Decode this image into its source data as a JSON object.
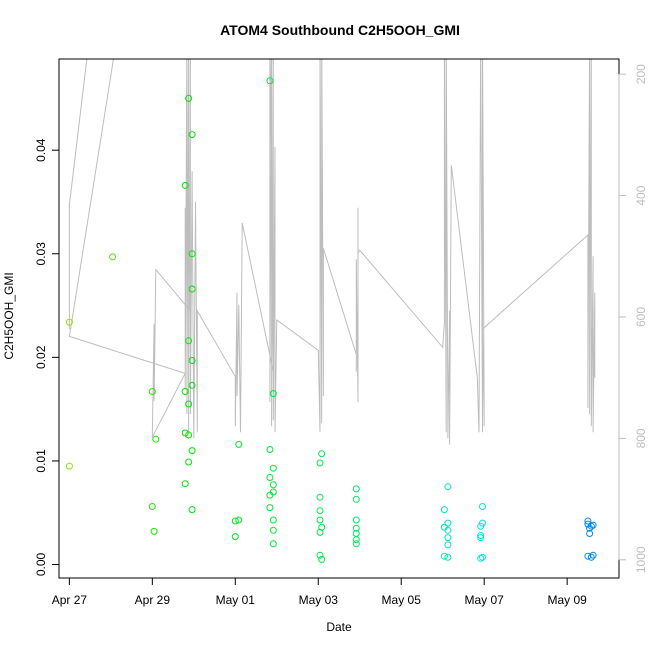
{
  "chart_data": {
    "type": "scatter",
    "title": "ATOM4 Southbound C2H5OOH_GMI",
    "xlabel": "Date",
    "ylabel": "C2H5OOH_GMI",
    "xlim": [
      "2018-04-26T18:00",
      "2018-05-10T06:00"
    ],
    "ylim": [
      -0.0013,
      0.0488
    ],
    "x_tick_labels": [
      "Apr 27",
      "Apr 29",
      "May 01",
      "May 03",
      "May 05",
      "May 07",
      "May 09"
    ],
    "x_ticks": [
      "2018-04-27",
      "2018-04-29",
      "2018-05-01",
      "2018-05-03",
      "2018-05-05",
      "2018-05-07",
      "2018-05-09"
    ],
    "y_ticks": [
      0.0,
      0.01,
      0.02,
      0.03,
      0.04
    ],
    "y_tick_labels": [
      "0.00",
      "0.01",
      "0.02",
      "0.03",
      "0.04"
    ],
    "right_axis": {
      "ticks": [
        200,
        400,
        600,
        800,
        1000
      ],
      "tick_labels": [
        "200",
        "400",
        "600",
        "800",
        "1000"
      ],
      "reversed": true,
      "lim": [
        175,
        1030
      ]
    },
    "series": [
      {
        "kind": "points",
        "color_scale": "green-to-blue by date",
        "points": [
          {
            "x": "2018-04-27T00:00",
            "y": 0.0234
          },
          {
            "x": "2018-04-27T00:00",
            "y": 0.0095
          },
          {
            "x": "2018-04-28T01:00",
            "y": 0.0297
          },
          {
            "x": "2018-04-29T00:00",
            "y": 0.0167
          },
          {
            "x": "2018-04-29T02:00",
            "y": 0.0121
          },
          {
            "x": "2018-04-29T00:00",
            "y": 0.0056
          },
          {
            "x": "2018-04-29T01:00",
            "y": 0.0032
          },
          {
            "x": "2018-04-29T19:00",
            "y": 0.0366
          },
          {
            "x": "2018-04-29T19:00",
            "y": 0.0167
          },
          {
            "x": "2018-04-29T19:00",
            "y": 0.0127
          },
          {
            "x": "2018-04-29T19:00",
            "y": 0.0078
          },
          {
            "x": "2018-04-29T21:00",
            "y": 0.045
          },
          {
            "x": "2018-04-29T21:00",
            "y": 0.0216
          },
          {
            "x": "2018-04-29T21:00",
            "y": 0.0155
          },
          {
            "x": "2018-04-29T21:00",
            "y": 0.0125
          },
          {
            "x": "2018-04-29T21:00",
            "y": 0.0099
          },
          {
            "x": "2018-04-29T23:00",
            "y": 0.0415
          },
          {
            "x": "2018-04-29T23:00",
            "y": 0.03
          },
          {
            "x": "2018-04-29T23:00",
            "y": 0.0266
          },
          {
            "x": "2018-04-29T23:00",
            "y": 0.0197
          },
          {
            "x": "2018-04-29T23:00",
            "y": 0.0173
          },
          {
            "x": "2018-04-29T23:00",
            "y": 0.011
          },
          {
            "x": "2018-04-29T23:00",
            "y": 0.0053
          },
          {
            "x": "2018-05-01T00:00",
            "y": 0.0042
          },
          {
            "x": "2018-05-01T02:00",
            "y": 0.0043
          },
          {
            "x": "2018-05-01T00:00",
            "y": 0.0027
          },
          {
            "x": "2018-05-01T02:00",
            "y": 0.0116
          },
          {
            "x": "2018-05-01T20:00",
            "y": 0.0467
          },
          {
            "x": "2018-05-01T20:00",
            "y": 0.0111
          },
          {
            "x": "2018-05-01T20:00",
            "y": 0.0084
          },
          {
            "x": "2018-05-01T20:00",
            "y": 0.0067
          },
          {
            "x": "2018-05-01T20:00",
            "y": 0.0055
          },
          {
            "x": "2018-05-01T22:00",
            "y": 0.0165
          },
          {
            "x": "2018-05-01T22:00",
            "y": 0.0093
          },
          {
            "x": "2018-05-01T22:00",
            "y": 0.0077
          },
          {
            "x": "2018-05-01T22:00",
            "y": 0.007
          },
          {
            "x": "2018-05-01T22:00",
            "y": 0.0043
          },
          {
            "x": "2018-05-01T22:00",
            "y": 0.0033
          },
          {
            "x": "2018-05-01T22:00",
            "y": 0.002
          },
          {
            "x": "2018-05-03T02:00",
            "y": 0.0107
          },
          {
            "x": "2018-05-03T01:00",
            "y": 0.0098
          },
          {
            "x": "2018-05-03T01:00",
            "y": 0.0065
          },
          {
            "x": "2018-05-03T01:00",
            "y": 0.0052
          },
          {
            "x": "2018-05-03T01:00",
            "y": 0.0043
          },
          {
            "x": "2018-05-03T02:00",
            "y": 0.0036
          },
          {
            "x": "2018-05-03T01:00",
            "y": 0.0031
          },
          {
            "x": "2018-05-03T01:00",
            "y": 0.0009
          },
          {
            "x": "2018-05-03T02:00",
            "y": 0.0005
          },
          {
            "x": "2018-05-03T22:00",
            "y": 0.0073
          },
          {
            "x": "2018-05-03T22:00",
            "y": 0.0063
          },
          {
            "x": "2018-05-03T22:00",
            "y": 0.0043
          },
          {
            "x": "2018-05-03T22:00",
            "y": 0.0035
          },
          {
            "x": "2018-05-03T22:00",
            "y": 0.003
          },
          {
            "x": "2018-05-03T22:00",
            "y": 0.0024
          },
          {
            "x": "2018-05-03T22:00",
            "y": 0.002
          },
          {
            "x": "2018-05-06T03:00",
            "y": 0.0075
          },
          {
            "x": "2018-05-06T01:00",
            "y": 0.0053
          },
          {
            "x": "2018-05-06T03:00",
            "y": 0.004
          },
          {
            "x": "2018-05-06T01:00",
            "y": 0.0036
          },
          {
            "x": "2018-05-06T03:00",
            "y": 0.0033
          },
          {
            "x": "2018-05-06T03:00",
            "y": 0.0026
          },
          {
            "x": "2018-05-06T03:00",
            "y": 0.0019
          },
          {
            "x": "2018-05-06T01:00",
            "y": 0.0008
          },
          {
            "x": "2018-05-06T03:00",
            "y": 0.0007
          },
          {
            "x": "2018-05-06T23:00",
            "y": 0.0056
          },
          {
            "x": "2018-05-06T23:00",
            "y": 0.004
          },
          {
            "x": "2018-05-06T22:00",
            "y": 0.0037
          },
          {
            "x": "2018-05-06T22:00",
            "y": 0.0028
          },
          {
            "x": "2018-05-06T22:00",
            "y": 0.0026
          },
          {
            "x": "2018-05-06T23:00",
            "y": 0.0007
          },
          {
            "x": "2018-05-06T22:00",
            "y": 0.0006
          },
          {
            "x": "2018-05-09T12:00",
            "y": 0.0042
          },
          {
            "x": "2018-05-09T12:00",
            "y": 0.0039
          },
          {
            "x": "2018-05-09T14:00",
            "y": 0.0037
          },
          {
            "x": "2018-05-09T15:00",
            "y": 0.0038
          },
          {
            "x": "2018-05-09T13:00",
            "y": 0.0035
          },
          {
            "x": "2018-05-09T13:00",
            "y": 0.003
          },
          {
            "x": "2018-05-09T12:00",
            "y": 0.0008
          },
          {
            "x": "2018-05-09T14:00",
            "y": 0.0007
          },
          {
            "x": "2018-05-09T15:00",
            "y": 0.0009
          }
        ]
      },
      {
        "kind": "line",
        "axis": "right",
        "color": "#bdbdbd",
        "points": [
          {
            "x": "2018-04-27T00:00",
            "y": 620
          },
          {
            "x": "2018-04-27T00:00",
            "y": 415
          },
          {
            "x": "2018-04-27T12:00",
            "y": 130
          },
          {
            "x": "2018-04-28T04:00",
            "y": 130
          },
          {
            "x": "2018-04-27T00:00",
            "y": 632
          },
          {
            "x": "2018-04-29T19:00",
            "y": 693
          },
          {
            "x": "2018-04-29T00:00",
            "y": 798
          },
          {
            "x": "2018-04-29T01:00",
            "y": 612
          },
          {
            "x": "2018-04-29T01:00",
            "y": 738
          },
          {
            "x": "2018-04-29T02:00",
            "y": 522
          },
          {
            "x": "2018-04-29T22:00",
            "y": 590
          },
          {
            "x": "2018-04-29T19:00",
            "y": 420
          },
          {
            "x": "2018-04-29T19:00",
            "y": 720
          },
          {
            "x": "2018-04-29T20:00",
            "y": 130
          },
          {
            "x": "2018-04-29T20:00",
            "y": 760
          },
          {
            "x": "2018-04-29T21:00",
            "y": 130
          },
          {
            "x": "2018-04-29T21:00",
            "y": 790
          },
          {
            "x": "2018-04-29T22:00",
            "y": 130
          },
          {
            "x": "2018-04-29T22:00",
            "y": 760
          },
          {
            "x": "2018-04-29T23:00",
            "y": 360
          },
          {
            "x": "2018-04-30T00:00",
            "y": 800
          },
          {
            "x": "2018-04-30T01:00",
            "y": 410
          },
          {
            "x": "2018-04-30T02:00",
            "y": 790
          },
          {
            "x": "2018-04-30T02:00",
            "y": 590
          },
          {
            "x": "2018-05-01T00:00",
            "y": 698
          },
          {
            "x": "2018-05-01T00:00",
            "y": 780
          },
          {
            "x": "2018-05-01T01:00",
            "y": 560
          },
          {
            "x": "2018-05-01T01:00",
            "y": 730
          },
          {
            "x": "2018-05-01T02:00",
            "y": 580
          },
          {
            "x": "2018-05-01T03:00",
            "y": 790
          },
          {
            "x": "2018-05-01T04:00",
            "y": 445
          },
          {
            "x": "2018-05-01T22:00",
            "y": 690
          },
          {
            "x": "2018-05-01T20:00",
            "y": 130
          },
          {
            "x": "2018-05-01T20:00",
            "y": 740
          },
          {
            "x": "2018-05-01T21:00",
            "y": 130
          },
          {
            "x": "2018-05-01T21:00",
            "y": 780
          },
          {
            "x": "2018-05-01T22:00",
            "y": 130
          },
          {
            "x": "2018-05-01T22:00",
            "y": 770
          },
          {
            "x": "2018-05-01T23:00",
            "y": 320
          },
          {
            "x": "2018-05-01T23:00",
            "y": 790
          },
          {
            "x": "2018-05-02T00:00",
            "y": 605
          },
          {
            "x": "2018-05-03T00:00",
            "y": 655
          },
          {
            "x": "2018-05-03T01:00",
            "y": 790
          },
          {
            "x": "2018-05-03T01:00",
            "y": 130
          },
          {
            "x": "2018-05-03T02:00",
            "y": 775
          },
          {
            "x": "2018-05-03T02:00",
            "y": 130
          },
          {
            "x": "2018-05-03T03:00",
            "y": 730
          },
          {
            "x": "2018-05-03T03:00",
            "y": 487
          },
          {
            "x": "2018-05-03T22:00",
            "y": 662
          },
          {
            "x": "2018-05-03T22:00",
            "y": 690
          },
          {
            "x": "2018-05-03T22:00",
            "y": 505
          },
          {
            "x": "2018-05-03T23:00",
            "y": 740
          },
          {
            "x": "2018-05-03T23:00",
            "y": 420
          },
          {
            "x": "2018-05-03T23:00",
            "y": 495
          },
          {
            "x": "2018-05-04T00:00",
            "y": 490
          },
          {
            "x": "2018-05-06T00:00",
            "y": 650
          },
          {
            "x": "2018-05-06T01:00",
            "y": 610
          },
          {
            "x": "2018-05-06T01:00",
            "y": 130
          },
          {
            "x": "2018-05-06T02:00",
            "y": 790
          },
          {
            "x": "2018-05-06T02:00",
            "y": 130
          },
          {
            "x": "2018-05-06T03:00",
            "y": 800
          },
          {
            "x": "2018-05-06T04:00",
            "y": 590
          },
          {
            "x": "2018-05-06T04:00",
            "y": 810
          },
          {
            "x": "2018-05-06T05:00",
            "y": 350
          },
          {
            "x": "2018-05-06T20:00",
            "y": 700
          },
          {
            "x": "2018-05-06T21:00",
            "y": 790
          },
          {
            "x": "2018-05-06T22:00",
            "y": 130
          },
          {
            "x": "2018-05-06T23:00",
            "y": 790
          },
          {
            "x": "2018-05-06T23:00",
            "y": 130
          },
          {
            "x": "2018-05-07T00:00",
            "y": 780
          },
          {
            "x": "2018-05-06T23:00",
            "y": 620
          },
          {
            "x": "2018-05-09T12:00",
            "y": 465
          },
          {
            "x": "2018-05-09T12:00",
            "y": 750
          },
          {
            "x": "2018-05-09T13:00",
            "y": 130
          },
          {
            "x": "2018-05-09T13:00",
            "y": 760
          },
          {
            "x": "2018-05-09T14:00",
            "y": 130
          },
          {
            "x": "2018-05-09T14:00",
            "y": 780
          },
          {
            "x": "2018-05-09T15:00",
            "y": 500
          },
          {
            "x": "2018-05-09T15:00",
            "y": 790
          },
          {
            "x": "2018-05-09T16:00",
            "y": 560
          },
          {
            "x": "2018-05-09T16:00",
            "y": 700
          }
        ]
      }
    ]
  }
}
